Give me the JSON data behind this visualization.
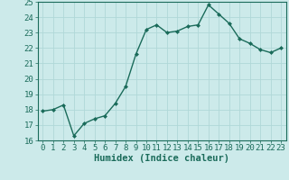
{
  "x": [
    0,
    1,
    2,
    3,
    4,
    5,
    6,
    7,
    8,
    9,
    10,
    11,
    12,
    13,
    14,
    15,
    16,
    17,
    18,
    19,
    20,
    21,
    22,
    23
  ],
  "y": [
    17.9,
    18.0,
    18.3,
    16.3,
    17.1,
    17.4,
    17.6,
    18.4,
    19.5,
    21.6,
    23.2,
    23.5,
    23.0,
    23.1,
    23.4,
    23.5,
    24.8,
    24.2,
    23.6,
    22.6,
    22.3,
    21.9,
    21.7,
    22.0
  ],
  "line_color": "#1a6b5a",
  "marker": "D",
  "marker_size": 2.0,
  "bg_color": "#cceaea",
  "grid_color": "#b0d8d8",
  "xlabel": "Humidex (Indice chaleur)",
  "ylim": [
    16,
    25
  ],
  "xlim": [
    -0.5,
    23.5
  ],
  "yticks": [
    16,
    17,
    18,
    19,
    20,
    21,
    22,
    23,
    24,
    25
  ],
  "xticks": [
    0,
    1,
    2,
    3,
    4,
    5,
    6,
    7,
    8,
    9,
    10,
    11,
    12,
    13,
    14,
    15,
    16,
    17,
    18,
    19,
    20,
    21,
    22,
    23
  ],
  "xlabel_fontsize": 7.5,
  "tick_fontsize": 6.5,
  "line_width": 1.0
}
